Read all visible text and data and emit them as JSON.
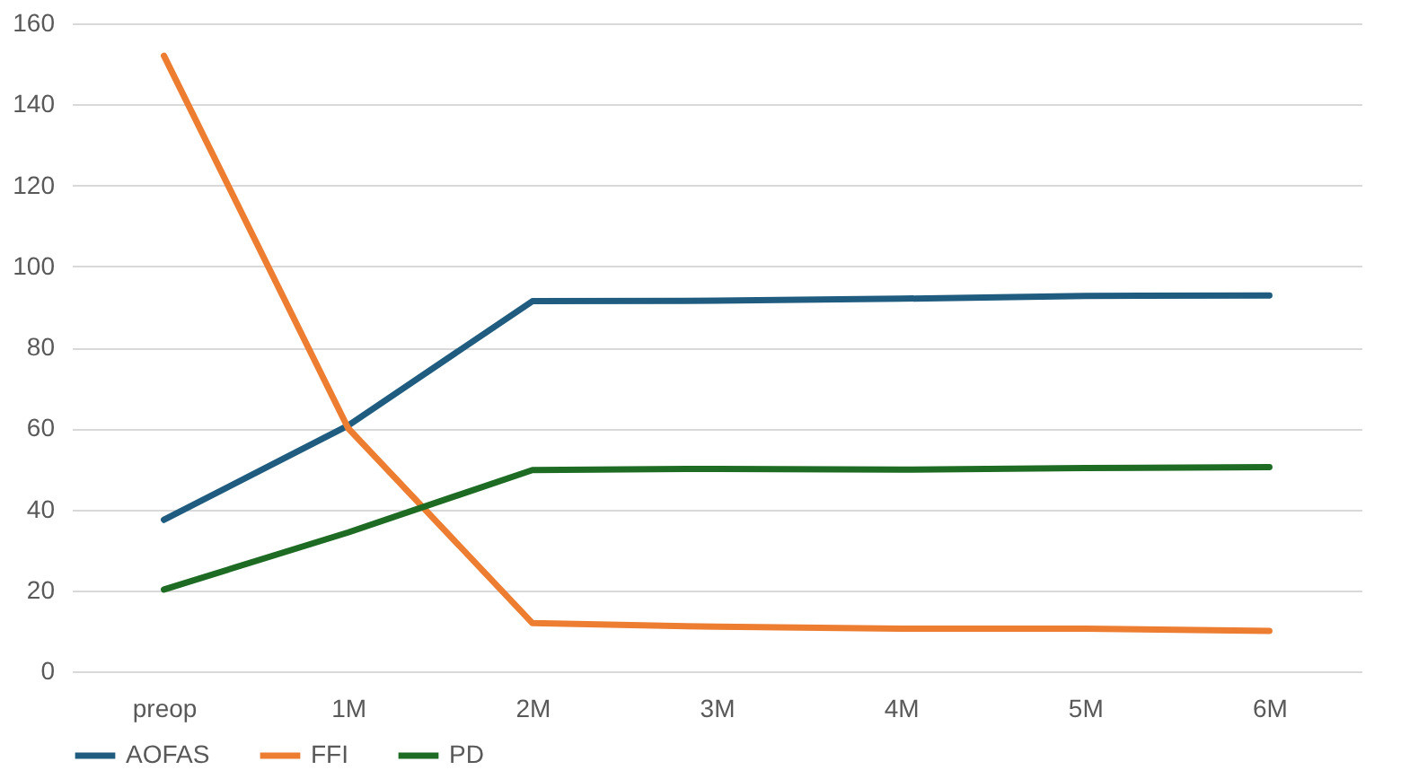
{
  "chart_data": {
    "type": "line",
    "categories": [
      "preop",
      "1M",
      "2M",
      "3M",
      "4M",
      "5M",
      "6M"
    ],
    "series": [
      {
        "name": "AOFAS",
        "color": "#1f5c7f",
        "values": [
          37.4,
          60.7,
          91.4,
          91.5,
          92,
          92.7,
          92.8
        ]
      },
      {
        "name": "FFI",
        "color": "#ed7d31",
        "values": [
          152,
          60,
          11.9,
          11,
          10.5,
          10.5,
          10
        ]
      },
      {
        "name": "PD",
        "color": "#1e6b24",
        "values": [
          20.2,
          34.3,
          49.7,
          50,
          49.8,
          50.2,
          50.4
        ]
      }
    ],
    "ylim": [
      0,
      160
    ],
    "yticks": [
      0,
      20,
      40,
      60,
      80,
      100,
      120,
      140,
      160
    ],
    "grid": "y",
    "legend": "bottom",
    "marker": "none",
    "line_style": "solid"
  }
}
